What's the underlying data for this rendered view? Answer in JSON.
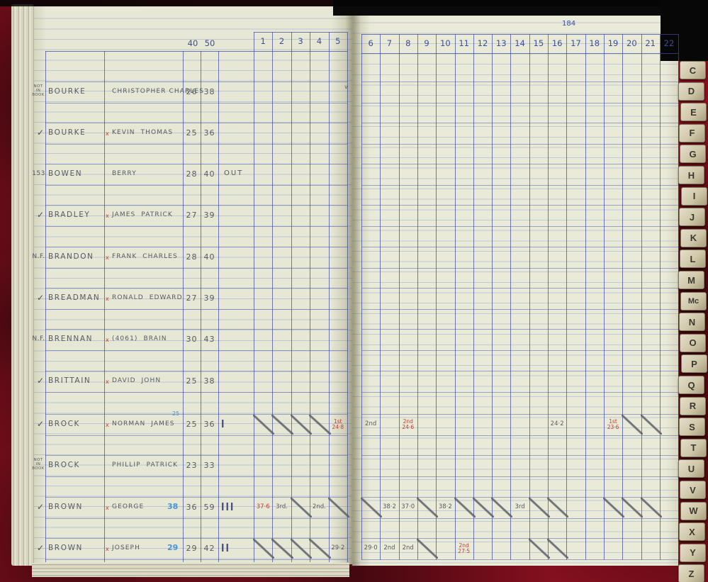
{
  "header": {
    "page_number": "184",
    "weight_col_labels": [
      "40",
      "50"
    ],
    "left_game_columns": [
      "1",
      "2",
      "3",
      "4",
      "5"
    ],
    "right_game_columns": [
      "6",
      "7",
      "8",
      "9",
      "10",
      "11",
      "12",
      "13",
      "14",
      "15",
      "16",
      "17",
      "18",
      "19",
      "20",
      "21",
      "22"
    ]
  },
  "rows": [
    {
      "margin": "NOT IN BOOK",
      "margin_style": "tiny",
      "surname": "BOURKE",
      "x_mark": false,
      "given": "CHRISTOPHER CHARLES",
      "n1": "26",
      "n2": "38",
      "extra": "",
      "tally": "",
      "sup_blue": "",
      "blue_num": "",
      "entries": []
    },
    {
      "margin": "✓",
      "margin_style": "check",
      "surname": "BOURKE",
      "x_mark": true,
      "given": "KEVIN  THOMAS",
      "n1": "25",
      "n2": "36",
      "extra": "",
      "tally": "",
      "sup_blue": "",
      "blue_num": "",
      "entries": []
    },
    {
      "margin": "153",
      "margin_style": "mark",
      "surname": "BOWEN",
      "x_mark": false,
      "given": "BERRY",
      "n1": "28",
      "n2": "40",
      "extra": "OUT",
      "tally": "",
      "sup_blue": "",
      "blue_num": "",
      "entries": []
    },
    {
      "margin": "✓",
      "margin_style": "check",
      "surname": "BRADLEY",
      "x_mark": true,
      "given": "JAMES  PATRICK",
      "n1": "27",
      "n2": "39",
      "extra": "",
      "tally": "",
      "sup_blue": "",
      "blue_num": "",
      "entries": []
    },
    {
      "margin": "N.F.",
      "margin_style": "mark",
      "surname": "BRANDON",
      "x_mark": true,
      "given": "FRANK  CHARLES",
      "n1": "28",
      "n2": "40",
      "extra": "",
      "tally": "",
      "sup_blue": "",
      "blue_num": "",
      "entries": []
    },
    {
      "margin": "✓",
      "margin_style": "check",
      "surname": "BREADMAN",
      "x_mark": true,
      "given": "RONALD  EDWARD",
      "n1": "27",
      "n2": "39",
      "extra": "",
      "tally": "",
      "sup_blue": "",
      "blue_num": "",
      "entries": []
    },
    {
      "margin": "N.F.",
      "margin_style": "mark",
      "surname": "BRENNAN",
      "x_mark": true,
      "given": "(4061)  BRAIN",
      "n1": "30",
      "n2": "43",
      "extra": "",
      "tally": "",
      "sup_blue": "",
      "blue_num": "",
      "entries": []
    },
    {
      "margin": "✓",
      "margin_style": "check",
      "surname": "BRITTAIN",
      "x_mark": true,
      "given": "DAVID  JOHN",
      "n1": "25",
      "n2": "38",
      "extra": "",
      "tally": "",
      "sup_blue": "",
      "blue_num": "",
      "entries": []
    },
    {
      "margin": "✓",
      "margin_style": "check",
      "surname": "BROCK",
      "x_mark": true,
      "given": "NORMAN  JAMES",
      "n1": "25",
      "n2": "36",
      "extra": "",
      "tally": "I",
      "sup_blue": "25",
      "blue_num": "",
      "entries": [
        {
          "col": 1,
          "slash": true
        },
        {
          "col": 2,
          "slash": true
        },
        {
          "col": 3,
          "slash": true
        },
        {
          "col": 4,
          "slash": true
        },
        {
          "col": 5,
          "lines": [
            "1st",
            "24·8"
          ],
          "color": "red"
        },
        {
          "col": 6,
          "lines": [
            "2nd"
          ],
          "color": "pencil"
        },
        {
          "col": 8,
          "lines": [
            "2nd",
            "24·6"
          ],
          "color": "red"
        },
        {
          "col": 16,
          "lines": [
            "24·2"
          ],
          "color": "pencil"
        },
        {
          "col": 19,
          "lines": [
            "1st",
            "23·6"
          ],
          "color": "red"
        },
        {
          "col": 20,
          "slash": true
        },
        {
          "col": 21,
          "slash": true
        }
      ]
    },
    {
      "margin": "NOT IN BOOK",
      "margin_style": "tiny",
      "surname": "BROCK",
      "x_mark": false,
      "given": "PHILLIP  PATRICK",
      "n1": "23",
      "n2": "33",
      "extra": "",
      "tally": "",
      "sup_blue": "",
      "blue_num": "",
      "entries": []
    },
    {
      "margin": "✓",
      "margin_style": "check",
      "surname": "BROWN",
      "x_mark": true,
      "given": "GEORGE",
      "n1": "36",
      "n2": "59",
      "extra": "",
      "tally": "III",
      "sup_blue": "",
      "blue_num": "38",
      "entries": [
        {
          "col": 1,
          "lines": [
            "37·6"
          ],
          "color": "red"
        },
        {
          "col": 2,
          "lines": [
            "3rd."
          ],
          "color": "pencil"
        },
        {
          "col": 3,
          "slash": true
        },
        {
          "col": 4,
          "lines": [
            "2nd."
          ],
          "color": "pencil"
        },
        {
          "col": 5,
          "slash": true
        },
        {
          "col": 6,
          "slash": true
        },
        {
          "col": 7,
          "lines": [
            "38·2"
          ],
          "color": "pencil"
        },
        {
          "col": 8,
          "lines": [
            "37·0"
          ],
          "color": "pencil"
        },
        {
          "col": 9,
          "slash": true
        },
        {
          "col": 10,
          "lines": [
            "38·2"
          ],
          "color": "pencil"
        },
        {
          "col": 11,
          "slash": true
        },
        {
          "col": 12,
          "slash": true
        },
        {
          "col": 13,
          "slash": true
        },
        {
          "col": 14,
          "lines": [
            "3rd"
          ],
          "color": "pencil"
        },
        {
          "col": 15,
          "slash": true
        },
        {
          "col": 16,
          "slash": true
        },
        {
          "col": 19,
          "slash": true
        },
        {
          "col": 20,
          "slash": true
        },
        {
          "col": 21,
          "slash": true
        }
      ]
    },
    {
      "margin": "✓",
      "margin_style": "check",
      "surname": "BROWN",
      "x_mark": true,
      "given": "JOSEPH",
      "n1": "29",
      "n2": "42",
      "extra": "",
      "tally": "II",
      "sup_blue": "",
      "blue_num": "29",
      "entries": [
        {
          "col": 1,
          "slash": true
        },
        {
          "col": 2,
          "slash": true
        },
        {
          "col": 3,
          "slash": true
        },
        {
          "col": 4,
          "slash": true
        },
        {
          "col": 5,
          "lines": [
            "29·2"
          ],
          "color": "pencil"
        },
        {
          "col": 6,
          "lines": [
            "29·0"
          ],
          "color": "pencil"
        },
        {
          "col": 7,
          "lines": [
            "2nd"
          ],
          "color": "pencil"
        },
        {
          "col": 8,
          "lines": [
            "2nd"
          ],
          "color": "pencil"
        },
        {
          "col": 9,
          "slash": true
        },
        {
          "col": 11,
          "lines": [
            "2nd",
            "27·5"
          ],
          "color": "red"
        },
        {
          "col": 15,
          "slash": true
        },
        {
          "col": 16,
          "slash": true
        }
      ]
    }
  ],
  "gutter_mark": "v",
  "index_tabs": [
    "C",
    "D",
    "E",
    "F",
    "G",
    "H",
    "I",
    "J",
    "K",
    "L",
    "M",
    "Mc",
    "N",
    "O",
    "P",
    "Q",
    "R",
    "S",
    "T",
    "U",
    "V",
    "W",
    "X",
    "Y",
    "Z"
  ],
  "colors": {
    "cover_red": "#87101f",
    "paper": "#e6e8d5",
    "grid_ink": "#3c4d9e",
    "pencil": "#585b60",
    "red_ink": "#c23b33",
    "blue_pencil": "#4496d8",
    "tab_face": "#d9d1b3"
  }
}
